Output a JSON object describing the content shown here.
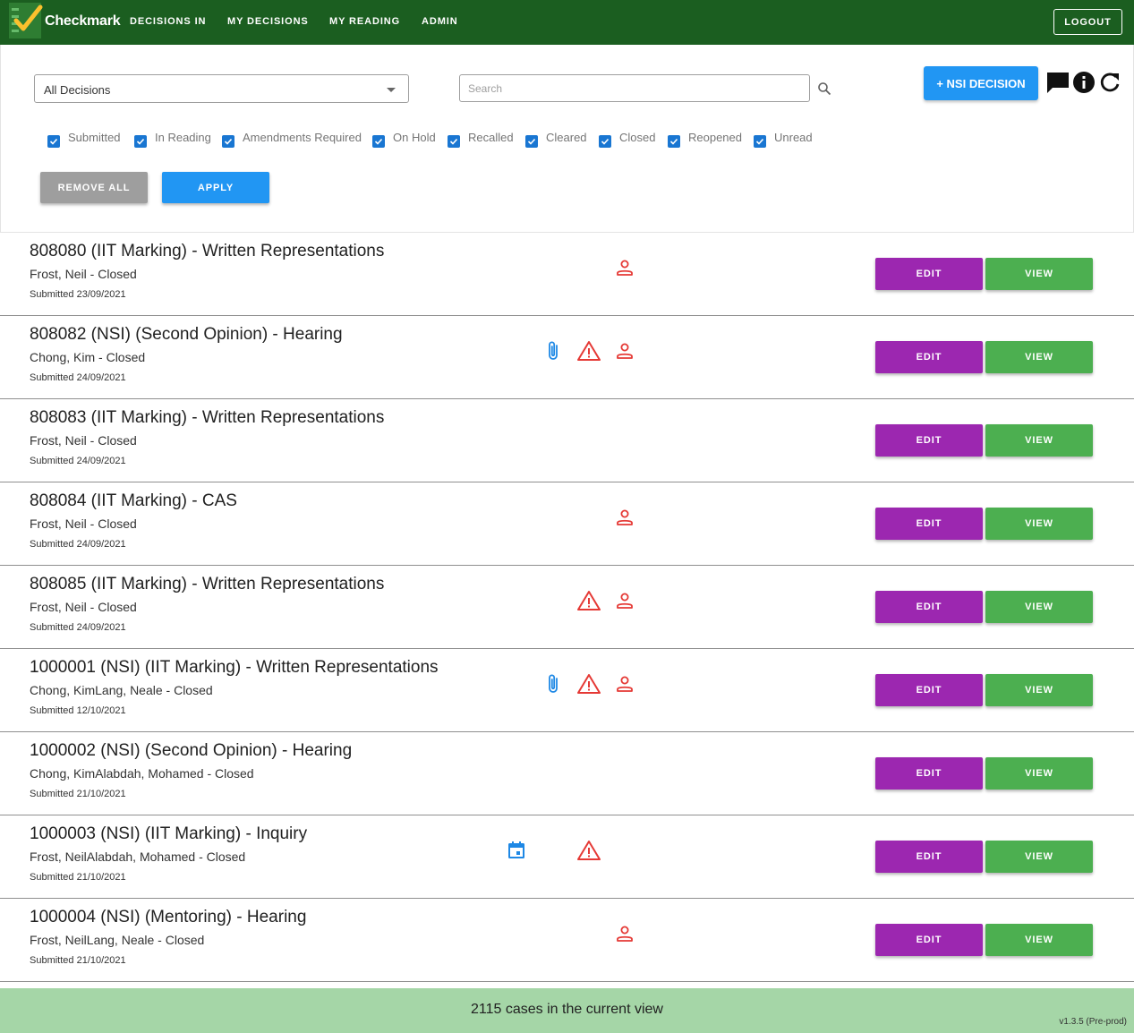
{
  "app": {
    "title": "Checkmark",
    "nav": [
      "DECISIONS IN",
      "MY DECISIONS",
      "MY READING",
      "ADMIN"
    ],
    "logout_label": "LOGOUT"
  },
  "filters": {
    "view_select": "All Decisions",
    "search_placeholder": "Search",
    "new_button_label": "+ NSI DECISION",
    "header_icons": [
      "comment-icon",
      "info-icon",
      "refresh-icon"
    ],
    "statuses": [
      {
        "label": "Submitted",
        "checked": true
      },
      {
        "label": "In Reading",
        "checked": true
      },
      {
        "label": "Amendments Required",
        "checked": true
      },
      {
        "label": "On Hold",
        "checked": true
      },
      {
        "label": "Recalled",
        "checked": true
      },
      {
        "label": "Cleared",
        "checked": true
      },
      {
        "label": "Closed",
        "checked": true
      },
      {
        "label": "Reopened",
        "checked": true
      },
      {
        "label": "Unread",
        "checked": true
      }
    ],
    "remove_all_label": "REMOVE ALL",
    "apply_label": "APPLY"
  },
  "decisions": [
    {
      "title": "808080 (IIT Marking) - Written Representations",
      "people": "Frost, Neil - Closed",
      "submitted": "Submitted 23/09/2021",
      "icons": [
        "person"
      ],
      "edit": "EDIT",
      "view": "VIEW"
    },
    {
      "title": "808082 (NSI) (Second Opinion) - Hearing",
      "people": "Chong, Kim - Closed",
      "submitted": "Submitted 24/09/2021",
      "icons": [
        "attachment",
        "warning",
        "person"
      ],
      "edit": "EDIT",
      "view": "VIEW"
    },
    {
      "title": "808083 (IIT Marking) - Written Representations",
      "people": "Frost, Neil - Closed",
      "submitted": "Submitted 24/09/2021",
      "icons": [],
      "edit": "EDIT",
      "view": "VIEW"
    },
    {
      "title": "808084 (IIT Marking) - CAS",
      "people": "Frost, Neil - Closed",
      "submitted": "Submitted 24/09/2021",
      "icons": [
        "person"
      ],
      "edit": "EDIT",
      "view": "VIEW"
    },
    {
      "title": "808085 (IIT Marking) - Written Representations",
      "people": "Frost, Neil - Closed",
      "submitted": "Submitted 24/09/2021",
      "icons": [
        "warning",
        "person"
      ],
      "edit": "EDIT",
      "view": "VIEW"
    },
    {
      "title": "1000001 (NSI) (IIT Marking) - Written Representations",
      "people": "Chong, KimLang, Neale - Closed",
      "submitted": "Submitted 12/10/2021",
      "icons": [
        "attachment",
        "warning",
        "person"
      ],
      "edit": "EDIT",
      "view": "VIEW"
    },
    {
      "title": "1000002 (NSI) (Second Opinion) - Hearing",
      "people": "Chong, KimAlabdah, Mohamed - Closed",
      "submitted": "Submitted 21/10/2021",
      "icons": [],
      "edit": "EDIT",
      "view": "VIEW"
    },
    {
      "title": "1000003 (NSI) (IIT Marking) - Inquiry",
      "people": "Frost, NeilAlabdah, Mohamed - Closed",
      "submitted": "Submitted 21/10/2021",
      "icons": [
        "calendar",
        "warning"
      ],
      "edit": "EDIT",
      "view": "VIEW"
    },
    {
      "title": "1000004 (NSI) (Mentoring) - Hearing",
      "people": "Frost, NeilLang, Neale - Closed",
      "submitted": "Submitted 21/10/2021",
      "icons": [
        "person"
      ],
      "edit": "EDIT",
      "view": "VIEW"
    }
  ],
  "footer": {
    "count_text": "2115 cases in the current view",
    "version": "v1.3.5 (Pre-prod)"
  },
  "colors": {
    "topbar": "#1b5e20",
    "primary": "#2196f3",
    "edit": "#9c27b0",
    "view": "#4caf50",
    "alert": "#e53935",
    "footer": "#a5d6a7"
  }
}
